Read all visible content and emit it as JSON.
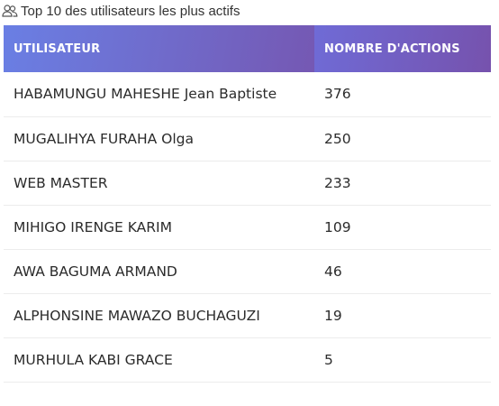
{
  "title": "Top 10 des utilisateurs les plus actifs",
  "icons": {
    "title_icon": "users-icon"
  },
  "colors": {
    "header_gradient_start": "#6a7fe4",
    "header_gradient_end": "#7652ad",
    "header_text": "#ffffff",
    "row_divider": "#ececec"
  },
  "table": {
    "headers": [
      "UTILISATEUR",
      "NOMBRE D'ACTIONS"
    ],
    "rows": [
      {
        "user": "HABAMUNGU MAHESHE Jean Baptiste",
        "actions": "376"
      },
      {
        "user": "MUGALIHYA FURAHA Olga",
        "actions": "250"
      },
      {
        "user": "WEB MASTER",
        "actions": "233"
      },
      {
        "user": "MIHIGO IRENGE KARIM",
        "actions": "109"
      },
      {
        "user": "AWA BAGUMA ARMAND",
        "actions": "46"
      },
      {
        "user": "ALPHONSINE MAWAZO BUCHAGUZI",
        "actions": "19"
      },
      {
        "user": "MURHULA KABI GRACE",
        "actions": "5"
      }
    ]
  }
}
